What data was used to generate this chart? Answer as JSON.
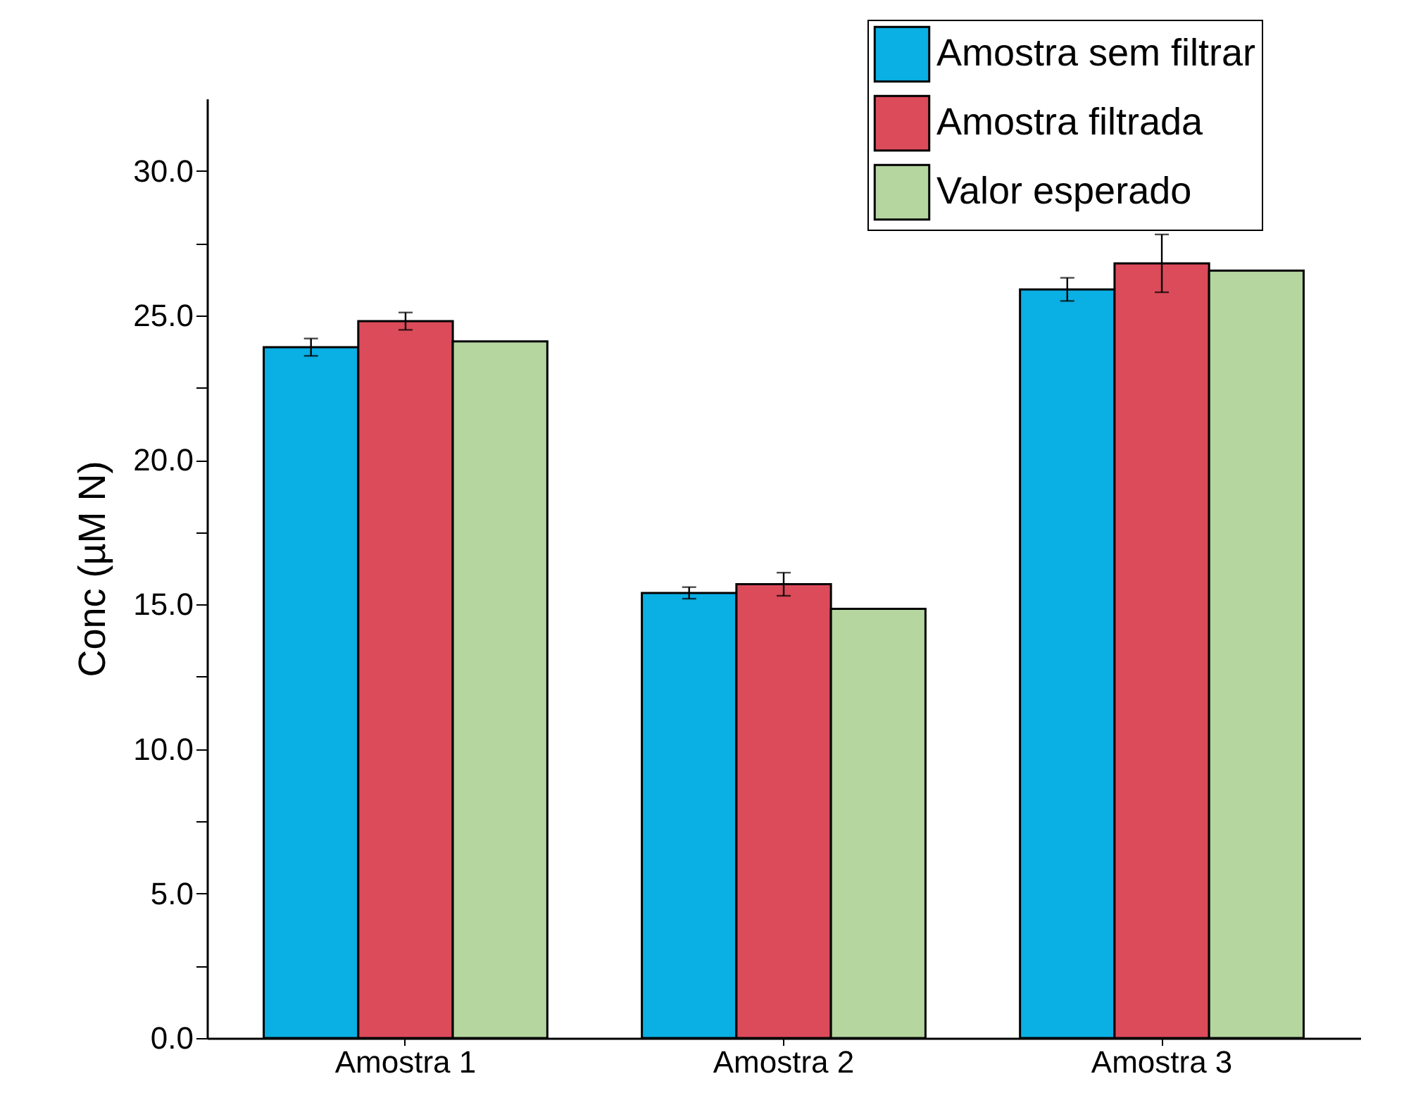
{
  "chart_data": {
    "type": "bar",
    "ylabel": "Conc (µM N)",
    "categories": [
      "Amostra 1",
      "Amostra 2",
      "Amostra 3"
    ],
    "series": [
      {
        "name": "Amostra sem filtrar",
        "color": "#0aafe3",
        "values": [
          23.9,
          15.4,
          25.9
        ],
        "errors": [
          0.3,
          0.2,
          0.4
        ]
      },
      {
        "name": "Amostra filtrada",
        "color": "#dc4b5a",
        "values": [
          24.8,
          15.7,
          26.8
        ],
        "errors": [
          0.3,
          0.4,
          1.0
        ]
      },
      {
        "name": "Valor esperado",
        "color": "#b5d69f",
        "values": [
          24.1,
          14.85,
          26.55
        ]
      }
    ],
    "ylim": [
      0,
      32.5
    ],
    "yticks": [
      {
        "value": 0,
        "label": "0.0"
      },
      {
        "value": 2.5,
        "label": null
      },
      {
        "value": 5,
        "label": "5.0"
      },
      {
        "value": 7.5,
        "label": null
      },
      {
        "value": 10,
        "label": "10.0"
      },
      {
        "value": 12.5,
        "label": null
      },
      {
        "value": 15,
        "label": "15.0"
      },
      {
        "value": 17.5,
        "label": null
      },
      {
        "value": 20,
        "label": "20.0"
      },
      {
        "value": 22.5,
        "label": null
      },
      {
        "value": 25,
        "label": "25.0"
      },
      {
        "value": 27.5,
        "label": null
      },
      {
        "value": 30,
        "label": "30.0"
      }
    ],
    "grid": false,
    "legend": "top right"
  }
}
